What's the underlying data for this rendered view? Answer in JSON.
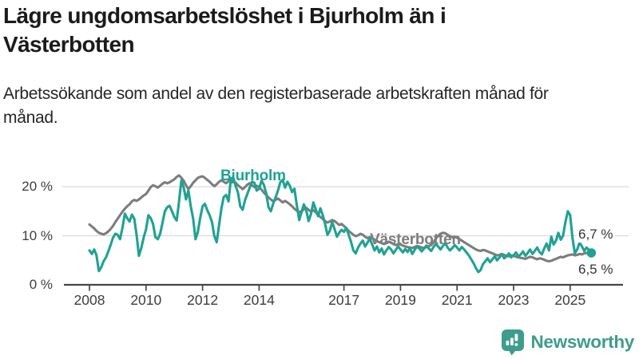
{
  "header": {
    "title": "Lägre ungdomsarbetslöshet i Bjurholm än i Västerbotten",
    "subtitle": "Arbetssökande som andel av den registerbaserade arbetskraften månad för månad."
  },
  "chart_data": {
    "type": "line",
    "title": "Lägre ungdomsarbetslöshet i Bjurholm än i Västerbotten",
    "ylabel": "",
    "xlabel": "",
    "unit": "percent",
    "x_unit": "month",
    "x_start": "2008-01",
    "x_end": "2025-10",
    "ylim": [
      0,
      24
    ],
    "grid": "horizontal",
    "grid_color": "#d9d9d9",
    "axis_color": "#454545",
    "x_ticks": [
      2008,
      2010,
      2012,
      2014,
      2017,
      2019,
      2021,
      2023,
      2025
    ],
    "y_ticks": [
      {
        "value": 0,
        "label": "0 %"
      },
      {
        "value": 10,
        "label": "10 %"
      },
      {
        "value": 20,
        "label": "20 %"
      }
    ],
    "series": [
      {
        "name": "Västerbotten",
        "color": "#7d7d7d",
        "end_dot": false,
        "last_value_label": "6,7 %",
        "values": [
          12.3,
          11.9,
          11.5,
          11.0,
          10.6,
          10.4,
          10.3,
          10.5,
          10.9,
          11.4,
          12.0,
          12.8,
          13.5,
          14.2,
          14.9,
          15.5,
          16.0,
          16.4,
          17.0,
          17.3,
          17.1,
          17.4,
          17.8,
          18.2,
          18.5,
          19.2,
          19.9,
          20.3,
          20.1,
          19.8,
          20.2,
          20.6,
          20.9,
          20.7,
          20.9,
          21.2,
          21.5,
          22.0,
          22.3,
          21.8,
          21.2,
          20.3,
          19.5,
          20.1,
          20.8,
          21.3,
          21.8,
          22.0,
          22.1,
          21.8,
          21.4,
          21.0,
          20.5,
          20.1,
          20.5,
          21.0,
          21.3,
          21.0,
          20.7,
          21.1,
          21.4,
          21.2,
          20.8,
          20.3,
          19.9,
          19.5,
          19.9,
          20.4,
          20.7,
          20.3,
          19.9,
          20.2,
          19.9,
          19.4,
          18.8,
          18.3,
          17.8,
          17.4,
          17.0,
          17.3,
          17.6,
          17.2,
          16.8,
          17.1,
          16.8,
          16.4,
          16.0,
          15.5,
          15.1,
          14.8,
          15.0,
          15.4,
          15.7,
          15.3,
          14.9,
          15.2,
          14.8,
          14.3,
          13.8,
          13.4,
          13.0,
          12.7,
          12.9,
          13.2,
          13.0,
          12.6,
          12.2,
          12.4,
          12.0,
          11.5,
          11.0,
          10.6,
          10.2,
          9.9,
          10.1,
          10.4,
          10.2,
          9.8,
          9.5,
          9.7,
          9.5,
          9.2,
          8.9,
          8.7,
          8.5,
          8.3,
          8.5,
          8.8,
          8.6,
          8.3,
          8.1,
          8.3,
          8.2,
          8.0,
          7.8,
          7.7,
          7.6,
          7.5,
          7.7,
          7.9,
          7.8,
          7.6,
          7.5,
          7.7,
          7.9,
          8.1,
          8.6,
          9.4,
          10.0,
          10.4,
          10.6,
          10.5,
          10.2,
          9.9,
          9.7,
          9.8,
          9.6,
          9.3,
          9.0,
          8.7,
          8.4,
          8.1,
          7.8,
          7.5,
          7.2,
          7.0,
          6.9,
          7.1,
          7.0,
          6.8,
          6.6,
          6.4,
          6.2,
          6.0,
          6.1,
          6.3,
          6.1,
          5.9,
          5.8,
          6.0,
          5.9,
          5.7,
          5.6,
          5.5,
          5.4,
          5.3,
          5.5,
          5.7,
          5.6,
          5.4,
          5.2,
          5.4,
          5.3,
          5.1,
          4.9,
          4.8,
          4.9,
          5.1,
          5.3,
          5.5,
          5.7,
          5.6,
          5.8,
          6.0,
          6.1,
          6.2,
          6.0,
          6.1,
          6.3,
          6.2,
          6.4,
          6.5,
          6.6,
          6.7
        ]
      },
      {
        "name": "Bjurholm",
        "color": "#1fa294",
        "end_dot": true,
        "last_value_label": "6,5 %",
        "values": [
          7.0,
          6.3,
          7.2,
          6.0,
          2.8,
          3.6,
          4.8,
          5.6,
          6.8,
          8.2,
          9.6,
          10.4,
          10.2,
          9.3,
          11.6,
          14.5,
          13.6,
          12.9,
          14.3,
          13.5,
          10.2,
          5.9,
          7.5,
          9.6,
          11.3,
          14.2,
          13.6,
          12.4,
          9.7,
          9.3,
          10.4,
          12.6,
          15.0,
          15.8,
          16.1,
          15.0,
          13.8,
          13.1,
          16.9,
          21.3,
          19.8,
          17.4,
          19.2,
          16.0,
          13.5,
          9.3,
          10.8,
          13.6,
          16.0,
          16.5,
          15.2,
          14.2,
          12.8,
          9.9,
          8.7,
          12.2,
          15.6,
          17.9,
          18.3,
          17.0,
          21.6,
          21.9,
          20.2,
          18.8,
          16.0,
          15.3,
          17.2,
          18.5,
          19.8,
          21.0,
          20.8,
          19.2,
          19.6,
          21.2,
          20.4,
          18.6,
          15.8,
          15.0,
          16.6,
          17.8,
          19.2,
          20.9,
          21.4,
          19.8,
          21.0,
          20.2,
          18.9,
          19.6,
          16.2,
          13.2,
          14.8,
          16.4,
          15.2,
          13.0,
          14.4,
          16.8,
          15.4,
          14.0,
          15.6,
          14.2,
          12.4,
          10.2,
          11.0,
          12.8,
          11.4,
          9.8,
          10.6,
          11.2,
          10.8,
          11.6,
          10.2,
          8.8,
          7.0,
          6.4,
          7.6,
          8.4,
          9.0,
          7.8,
          8.6,
          9.4,
          8.2,
          7.0,
          7.8,
          6.6,
          7.4,
          6.2,
          7.0,
          7.7,
          7.2,
          6.4,
          7.1,
          7.8,
          7.2,
          6.6,
          7.3,
          6.7,
          7.5,
          6.3,
          7.1,
          7.8,
          7.4,
          6.8,
          7.4,
          8.0,
          7.4,
          6.9,
          7.7,
          8.3,
          7.8,
          7.2,
          7.9,
          8.5,
          7.6,
          7.0,
          7.5,
          8.1,
          7.6,
          7.0,
          7.7,
          7.2,
          6.6,
          6.0,
          5.2,
          4.4,
          3.4,
          2.6,
          3.0,
          4.2,
          4.8,
          5.4,
          4.6,
          5.2,
          5.8,
          5.0,
          5.6,
          6.2,
          5.4,
          5.8,
          6.4,
          5.6,
          6.0,
          6.6,
          5.8,
          6.2,
          6.8,
          5.9,
          6.5,
          7.2,
          6.3,
          6.9,
          7.6,
          6.7,
          6.2,
          7.4,
          8.4,
          7.0,
          9.8,
          8.2,
          9.0,
          10.6,
          9.2,
          10.0,
          12.8,
          15.0,
          14.2,
          9.6,
          6.4,
          7.2,
          8.6,
          7.8,
          6.9,
          7.6,
          7.1,
          6.5
        ]
      }
    ],
    "annotations": {
      "series_label_bjurholm": "Bjurholm",
      "series_label_vasterbotten": "Västerbotten",
      "end_label_top": "6,7 %",
      "end_label_bottom": "6,5 %"
    },
    "legend_position": "inline-labels"
  },
  "footer": {
    "brand": "Newsworthy",
    "brand_color": "#3e9c8d",
    "logo_icon": "bar-chart-speech-bubble"
  }
}
